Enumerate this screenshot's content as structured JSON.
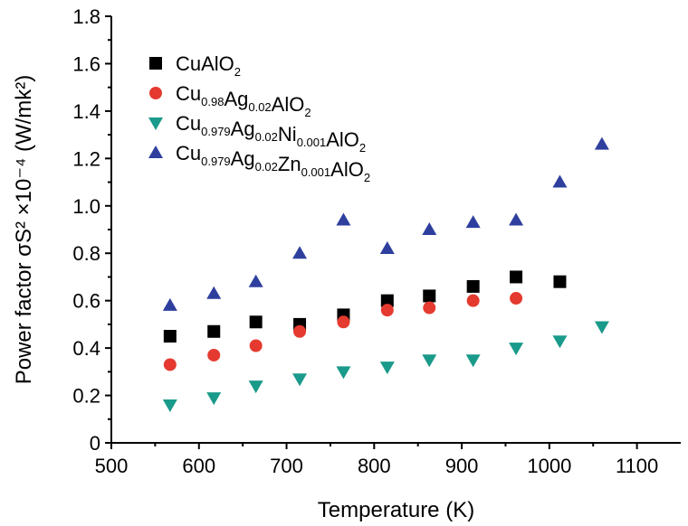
{
  "chart_data": {
    "type": "scatter",
    "xlabel": "Temperature (K)",
    "ylabel": "Power factor σS² ×10⁻⁴ (W/mk²)",
    "xlim": [
      500,
      1150
    ],
    "ylim": [
      0,
      1.8
    ],
    "xticks": [
      "500",
      "600",
      "700",
      "800",
      "900",
      "1000",
      "1100"
    ],
    "yticks": [
      "0",
      "0.2",
      "0.4",
      "0.6",
      "0.8",
      "1.0",
      "1.2",
      "1.4",
      "1.6",
      "1.8"
    ],
    "legend_position": "top-left",
    "series": [
      {
        "name": "CuAlO2",
        "label_parts": [
          [
            "CuAlO",
            ""
          ],
          [
            "2",
            "sub"
          ]
        ],
        "marker": "square",
        "color": "#000000",
        "points": [
          [
            567,
            0.45
          ],
          [
            617,
            0.47
          ],
          [
            665,
            0.51
          ],
          [
            715,
            0.5
          ],
          [
            765,
            0.54
          ],
          [
            815,
            0.6
          ],
          [
            863,
            0.62
          ],
          [
            913,
            0.66
          ],
          [
            962,
            0.7
          ],
          [
            1012,
            0.68
          ]
        ]
      },
      {
        "name": "Cu0.98Ag0.02AlO2",
        "label_parts": [
          [
            "Cu",
            ""
          ],
          [
            "0.98",
            "sub"
          ],
          [
            "Ag",
            ""
          ],
          [
            "0.02",
            "sub"
          ],
          [
            "AlO",
            ""
          ],
          [
            "2",
            "sub"
          ]
        ],
        "marker": "circle",
        "color": "#e53a2f",
        "points": [
          [
            567,
            0.33
          ],
          [
            617,
            0.37
          ],
          [
            665,
            0.41
          ],
          [
            715,
            0.47
          ],
          [
            765,
            0.51
          ],
          [
            815,
            0.56
          ],
          [
            863,
            0.57
          ],
          [
            913,
            0.6
          ],
          [
            962,
            0.61
          ]
        ]
      },
      {
        "name": "Cu0.979Ag0.02Ni0.001AlO2",
        "label_parts": [
          [
            "Cu",
            ""
          ],
          [
            "0.979",
            "sub"
          ],
          [
            "Ag",
            ""
          ],
          [
            "0.02",
            "sub"
          ],
          [
            "Ni",
            ""
          ],
          [
            "0.001",
            "sub"
          ],
          [
            "AlO",
            ""
          ],
          [
            "2",
            "sub"
          ]
        ],
        "marker": "triangle-down",
        "color": "#1a9a8a",
        "points": [
          [
            567,
            0.16
          ],
          [
            617,
            0.19
          ],
          [
            665,
            0.24
          ],
          [
            715,
            0.27
          ],
          [
            765,
            0.3
          ],
          [
            815,
            0.32
          ],
          [
            863,
            0.35
          ],
          [
            913,
            0.35
          ],
          [
            962,
            0.4
          ],
          [
            1012,
            0.43
          ],
          [
            1060,
            0.49
          ]
        ]
      },
      {
        "name": "Cu0.979Ag0.02Zn0.001AlO2",
        "label_parts": [
          [
            "Cu",
            ""
          ],
          [
            "0.979",
            "sub"
          ],
          [
            "Ag",
            ""
          ],
          [
            "0.02",
            "sub"
          ],
          [
            "Zn",
            ""
          ],
          [
            "0.001",
            "sub"
          ],
          [
            "AlO",
            ""
          ],
          [
            "2",
            "sub"
          ]
        ],
        "marker": "triangle-up",
        "color": "#2e3f9e",
        "points": [
          [
            567,
            0.58
          ],
          [
            617,
            0.63
          ],
          [
            665,
            0.68
          ],
          [
            715,
            0.8
          ],
          [
            765,
            0.94
          ],
          [
            815,
            0.82
          ],
          [
            863,
            0.9
          ],
          [
            913,
            0.93
          ],
          [
            962,
            0.94
          ],
          [
            1012,
            1.1
          ],
          [
            1060,
            1.26
          ]
        ]
      }
    ]
  }
}
